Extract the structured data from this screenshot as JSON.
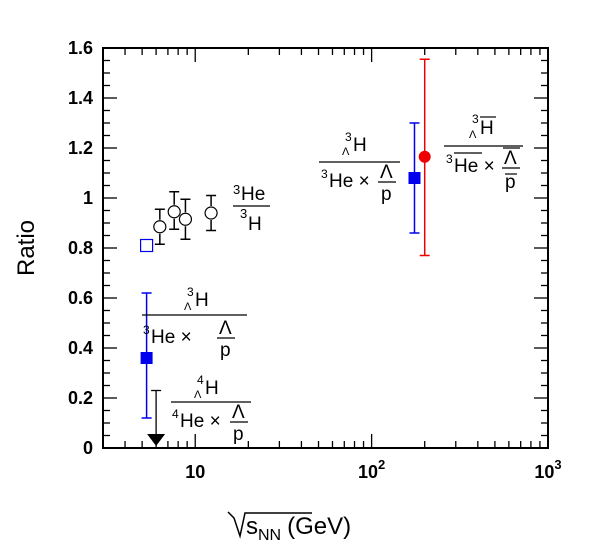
{
  "chart_data": {
    "type": "scatter",
    "title": "",
    "xlabel": "s_NN (GeV)",
    "xlabel_sub": "NN",
    "xlabel_unit": "(GeV)",
    "ylabel": "Ratio",
    "xscale": "log",
    "xlim": [
      3,
      1000
    ],
    "ylim": [
      0,
      1.6
    ],
    "grid": false,
    "x_ticks": [
      {
        "value": 10,
        "base": "10",
        "exp": ""
      },
      {
        "value": 100,
        "base": "10",
        "exp": "2"
      },
      {
        "value": 1000,
        "base": "10",
        "exp": "3"
      }
    ],
    "y_ticks": [
      {
        "value": 0,
        "label": "0"
      },
      {
        "value": 0.2,
        "label": "0.2"
      },
      {
        "value": 0.4,
        "label": "0.4"
      },
      {
        "value": 0.6,
        "label": "0.6"
      },
      {
        "value": 0.8,
        "label": "0.8"
      },
      {
        "value": 1.0,
        "label": "1"
      },
      {
        "value": 1.2,
        "label": "1.2"
      },
      {
        "value": 1.4,
        "label": "1.4"
      },
      {
        "value": 1.6,
        "label": "1.6"
      }
    ],
    "series": [
      {
        "marker": "circle-open",
        "color": "#000000",
        "points": [
          {
            "x": 6.3,
            "y": 0.885,
            "err_low": 0.07,
            "err_high": 0.07
          },
          {
            "x": 7.6,
            "y": 0.945,
            "err_low": 0.07,
            "err_high": 0.08
          },
          {
            "x": 8.8,
            "y": 0.915,
            "err_low": 0.08,
            "err_high": 0.08
          },
          {
            "x": 12.3,
            "y": 0.94,
            "err_low": 0.07,
            "err_high": 0.07
          }
        ]
      },
      {
        "marker": "square-open",
        "color": "#0000ee",
        "points": [
          {
            "x": 5.3,
            "y": 0.81
          }
        ]
      },
      {
        "marker": "square-filled",
        "color": "#0000ee",
        "points": [
          {
            "x": 5.3,
            "y": 0.36,
            "err_low": 0.24,
            "err_high": 0.26
          },
          {
            "x": 175,
            "y": 1.08,
            "err_low": 0.22,
            "err_high": 0.22
          }
        ]
      },
      {
        "marker": "circle-filled",
        "color": "#ee0000",
        "points": [
          {
            "x": 200,
            "y": 1.165,
            "err_low": 0.395,
            "err_high": 0.39
          }
        ]
      },
      {
        "marker": "upper-limit",
        "color": "#000000",
        "points": [
          {
            "x": 6.0,
            "y": 0.23
          }
        ]
      }
    ],
    "annotations": [
      {
        "id": "he3-h3",
        "numerator": "3He",
        "denominator": "3H"
      },
      {
        "id": "hyp3-low",
        "numerator": "3ΛH",
        "denominator": "3He × Λ/p"
      },
      {
        "id": "hyp4",
        "numerator": "4ΛH",
        "denominator": "4He × Λ/p"
      },
      {
        "id": "hyp3-high",
        "numerator": "3ΛH",
        "denominator": "3He × Λ/p"
      },
      {
        "id": "antihyp3",
        "numerator": "3ΛH̄",
        "denominator": "3H̄e × Λ̄/p̄"
      }
    ]
  }
}
